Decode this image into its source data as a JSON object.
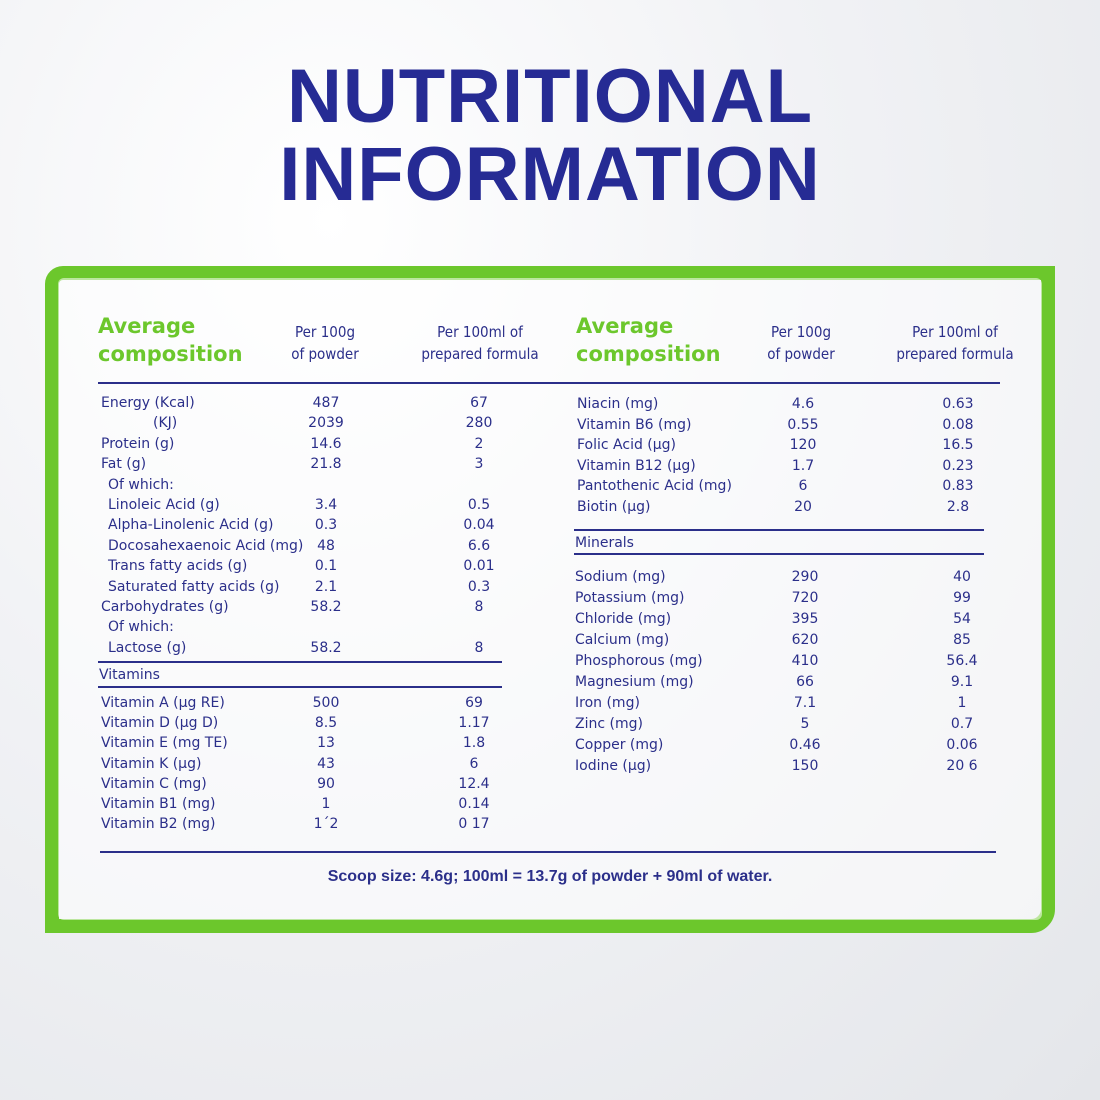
{
  "title": {
    "line1": "NUTRITIONAL",
    "line2": "INFORMATION"
  },
  "left": {
    "header": {
      "composition": "Average\ncomposition",
      "col1": "Per 100g\nof powder",
      "col2": "Per 100ml of\nprepared formula"
    },
    "rows": [
      {
        "label": "Energy (Kcal)",
        "v1": "487",
        "v2": "67"
      },
      {
        "label": "(KJ)",
        "v1": "2039",
        "v2": "280"
      },
      {
        "label": "Protein (g)",
        "v1": "14.6",
        "v2": "2"
      },
      {
        "label": "Fat (g)",
        "v1": "21.8",
        "v2": "3"
      },
      {
        "label": "Of which:",
        "v1": "",
        "v2": ""
      },
      {
        "label": "Linoleic Acid (g)",
        "v1": "3.4",
        "v2": "0.5"
      },
      {
        "label": "Alpha-Linolenic Acid (g)",
        "v1": "0.3",
        "v2": "0.04"
      },
      {
        "label": "Docosahexaenoic Acid (mg)",
        "v1": "48",
        "v2": "6.6"
      },
      {
        "label": "Trans fatty acids (g)",
        "v1": "0.1",
        "v2": "0.01"
      },
      {
        "label": "Saturated fatty acids (g)",
        "v1": "2.1",
        "v2": "0.3"
      },
      {
        "label": "Carbohydrates (g)",
        "v1": "58.2",
        "v2": "8"
      },
      {
        "label": "Of which:",
        "v1": "",
        "v2": ""
      },
      {
        "label": "Lactose (g)",
        "v1": "58.2",
        "v2": "8"
      }
    ],
    "vitamins_label": "Vitamins",
    "vitamins": [
      {
        "label": "Vitamin A (µg RE)",
        "v1": "500",
        "v2": "69"
      },
      {
        "label": "Vitamin D (µg D)",
        "v1": "8.5",
        "v2": "1.17"
      },
      {
        "label": "Vitamin E (mg TE)",
        "v1": "13",
        "v2": "1.8"
      },
      {
        "label": "Vitamin K (µg)",
        "v1": "43",
        "v2": "6"
      },
      {
        "label": "Vitamin C (mg)",
        "v1": "90",
        "v2": "12.4"
      },
      {
        "label": "Vitamin B1 (mg)",
        "v1": "1",
        "v2": "0.14"
      },
      {
        "label": "Vitamin B2 (mg)",
        "v1": "1´2",
        "v2": "0 17"
      }
    ]
  },
  "right": {
    "header": {
      "composition": "Average\ncomposition",
      "col1": "Per 100g\nof powder",
      "col2": "Per 100ml of\nprepared formula"
    },
    "rows": [
      {
        "label": "Niacin (mg)",
        "v1": "4.6",
        "v2": "0.63"
      },
      {
        "label": "Vitamin B6 (mg)",
        "v1": "0.55",
        "v2": "0.08"
      },
      {
        "label": "Folic Acid (µg)",
        "v1": "120",
        "v2": "16.5"
      },
      {
        "label": "Vitamin B12 (µg)",
        "v1": "1.7",
        "v2": "0.23"
      },
      {
        "label": "Pantothenic Acid (mg)",
        "v1": "6",
        "v2": "0.83"
      },
      {
        "label": "Biotin (µg)",
        "v1": "20",
        "v2": "2.8"
      }
    ],
    "minerals_label": "Minerals",
    "minerals": [
      {
        "label": "Sodium (mg)",
        "v1": "290",
        "v2": "40"
      },
      {
        "label": "Potassium (mg)",
        "v1": "720",
        "v2": "99"
      },
      {
        "label": "Chloride (mg)",
        "v1": "395",
        "v2": "54"
      },
      {
        "label": "Calcium (mg)",
        "v1": "620",
        "v2": "85"
      },
      {
        "label": "Phosphorous (mg)",
        "v1": "410",
        "v2": "56.4"
      },
      {
        "label": "Magnesium (mg)",
        "v1": "66",
        "v2": "9.1"
      },
      {
        "label": "Iron (mg)",
        "v1": "7.1",
        "v2": "1"
      },
      {
        "label": "Zinc (mg)",
        "v1": "5",
        "v2": "0.7"
      },
      {
        "label": "Copper (mg)",
        "v1": "0.46",
        "v2": "0.06"
      },
      {
        "label": "Iodine (µg)",
        "v1": "150",
        "v2": "20 6"
      }
    ]
  },
  "footer": "Scoop size: 4.6g; 100ml = 13.7g of powder + 90ml of water.",
  "colors": {
    "brand_blue": "#262b94",
    "accent_green": "#6cc72c"
  }
}
